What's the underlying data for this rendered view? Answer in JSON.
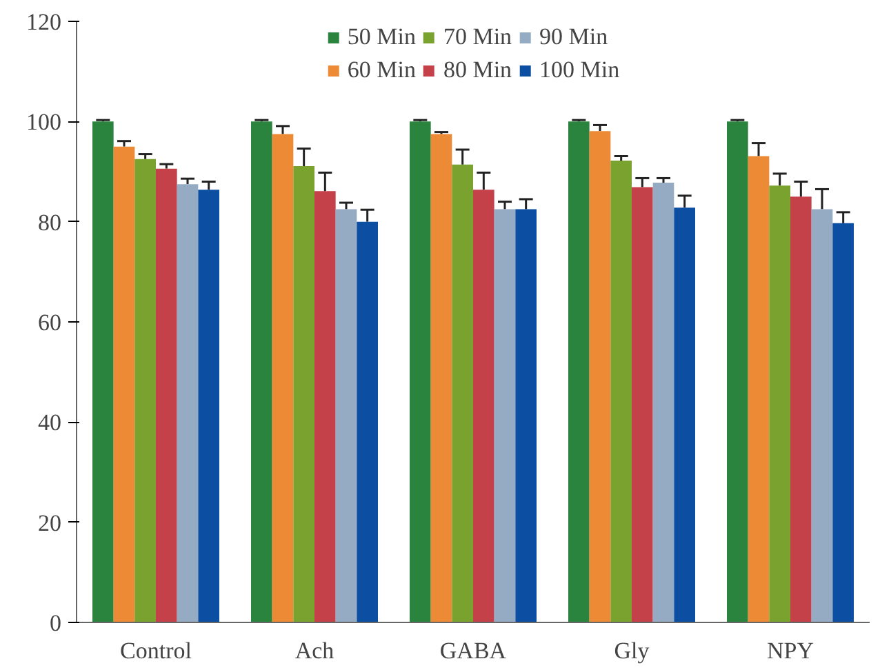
{
  "chart_data": {
    "type": "bar",
    "categories": [
      "Control",
      "Ach",
      "GABA",
      "Gly",
      "NPY"
    ],
    "series": [
      {
        "name": "50 Min",
        "color": "#2a843e",
        "values": [
          100,
          100,
          100,
          100,
          100
        ],
        "errors": [
          [
            100,
            100.3
          ],
          [
            100,
            100.3
          ],
          [
            100,
            100.3
          ],
          [
            100,
            100.3
          ],
          [
            100,
            100.3
          ]
        ]
      },
      {
        "name": "60 Min",
        "color": "#ec8a35",
        "values": [
          95.0,
          97.5,
          97.5,
          98.1,
          93.1
        ],
        "errors": [
          [
            95.0,
            96.1
          ],
          [
            97.5,
            99.1
          ],
          [
            97.5,
            97.9
          ],
          [
            98.1,
            99.3
          ],
          [
            93.1,
            95.7
          ]
        ]
      },
      {
        "name": "70 Min",
        "color": "#7aa22f",
        "values": [
          92.5,
          91.1,
          91.4,
          92.2,
          87.2
        ],
        "errors": [
          [
            92.5,
            93.5
          ],
          [
            91.1,
            94.6
          ],
          [
            91.4,
            94.4
          ],
          [
            92.2,
            93.1
          ],
          [
            87.2,
            89.6
          ]
        ]
      },
      {
        "name": "80 Min",
        "color": "#c4414a",
        "values": [
          90.6,
          86.1,
          86.4,
          86.9,
          85.0
        ],
        "errors": [
          [
            90.6,
            91.5
          ],
          [
            86.1,
            89.8
          ],
          [
            86.4,
            89.8
          ],
          [
            86.9,
            88.7
          ],
          [
            85.0,
            88.0
          ]
        ]
      },
      {
        "name": "90 Min",
        "color": "#95abc3",
        "values": [
          87.5,
          82.5,
          82.5,
          87.8,
          82.5
        ],
        "errors": [
          [
            87.5,
            88.6
          ],
          [
            82.5,
            83.8
          ],
          [
            82.5,
            84.0
          ],
          [
            87.8,
            88.7
          ],
          [
            82.5,
            86.5
          ]
        ]
      },
      {
        "name": "100 Min",
        "color": "#0c4ea2",
        "values": [
          86.4,
          80.0,
          82.5,
          82.8,
          79.7
        ],
        "errors": [
          [
            86.4,
            88.0
          ],
          [
            80.0,
            82.4
          ],
          [
            82.5,
            84.5
          ],
          [
            82.8,
            85.2
          ],
          [
            79.7,
            81.9
          ]
        ]
      }
    ],
    "ylim": [
      0,
      120
    ],
    "yticks": [
      0,
      20,
      40,
      60,
      80,
      100,
      120
    ],
    "grid": false,
    "legend": "top"
  }
}
